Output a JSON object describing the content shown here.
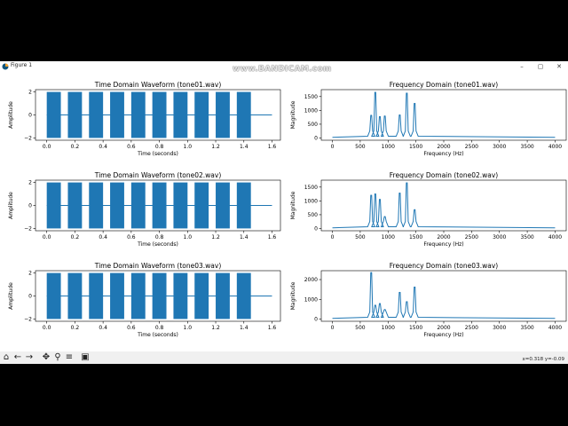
{
  "window": {
    "title": "Figure 1",
    "minimize": "–",
    "maximize": "▢",
    "close": "✕"
  },
  "watermark": "www.BANDICAM.com",
  "toolbar": {
    "buttons": [
      {
        "name": "home-icon",
        "glyph": "⌂"
      },
      {
        "name": "back-icon",
        "glyph": "←"
      },
      {
        "name": "forward-icon",
        "glyph": "→"
      },
      {
        "name": "pan-icon",
        "glyph": "✥"
      },
      {
        "name": "zoom-icon",
        "glyph": "⚲"
      },
      {
        "name": "configure-icon",
        "glyph": "≡"
      },
      {
        "name": "save-icon",
        "glyph": "▣"
      }
    ],
    "coords": "x=0.318 y=-0.09"
  },
  "colors": {
    "line": "#1f77b4",
    "axis": "#000000"
  },
  "chart_data": [
    {
      "type": "line",
      "title": "Time Domain Waveform (tone01.wav)",
      "xlabel": "Time (seconds)",
      "ylabel": "Amplitude",
      "xlim": [
        -0.08,
        1.66
      ],
      "ylim": [
        -2.2,
        2.2
      ],
      "xticks": [
        0,
        0.2,
        0.4,
        0.6,
        0.8,
        1.0,
        1.2,
        1.4,
        1.6
      ],
      "xticklabels": [
        "0.0",
        "0.2",
        "0.4",
        "0.6",
        "0.8",
        "1.0",
        "1.2",
        "1.4",
        "1.6"
      ],
      "yticks": [
        -2,
        0,
        2
      ],
      "yticklabels": [
        "−2",
        "0",
        "2"
      ],
      "bursts": [
        [
          0,
          0.1
        ],
        [
          0.15,
          0.25
        ],
        [
          0.3,
          0.4
        ],
        [
          0.45,
          0.55
        ],
        [
          0.6,
          0.7
        ],
        [
          0.75,
          0.85
        ],
        [
          0.9,
          1.0
        ],
        [
          1.05,
          1.15
        ],
        [
          1.2,
          1.3
        ],
        [
          1.35,
          1.45
        ]
      ],
      "amplitude": 2,
      "end": 1.6
    },
    {
      "type": "line",
      "title": "Frequency Domain (tone01.wav)",
      "xlabel": "Frequency (Hz)",
      "ylabel": "Magnitude",
      "xlim": [
        -200,
        4200
      ],
      "ylim": [
        -80,
        1750
      ],
      "xticks": [
        0,
        500,
        1000,
        1500,
        2000,
        2500,
        3000,
        3500,
        4000
      ],
      "xticklabels": [
        "0",
        "500",
        "1000",
        "1500",
        "2000",
        "2500",
        "3000",
        "3500",
        "4000"
      ],
      "yticks": [
        0,
        500,
        1000,
        1500
      ],
      "yticklabels": [
        "0",
        "500",
        "1000",
        "1500"
      ],
      "peaks": [
        {
          "f": 697,
          "m": 820
        },
        {
          "f": 770,
          "m": 1650
        },
        {
          "f": 852,
          "m": 770
        },
        {
          "f": 941,
          "m": 790
        },
        {
          "f": 1209,
          "m": 830
        },
        {
          "f": 1336,
          "m": 1620
        },
        {
          "f": 1477,
          "m": 1250
        }
      ],
      "fmax": 4000
    },
    {
      "type": "line",
      "title": "Time Domain Waveform (tone02.wav)",
      "xlabel": "Time (seconds)",
      "ylabel": "Amplitude",
      "xlim": [
        -0.08,
        1.66
      ],
      "ylim": [
        -2.2,
        2.2
      ],
      "xticks": [
        0,
        0.2,
        0.4,
        0.6,
        0.8,
        1.0,
        1.2,
        1.4,
        1.6
      ],
      "xticklabels": [
        "0.0",
        "0.2",
        "0.4",
        "0.6",
        "0.8",
        "1.0",
        "1.2",
        "1.4",
        "1.6"
      ],
      "yticks": [
        -2,
        0,
        2
      ],
      "yticklabels": [
        "−2",
        "0",
        "2"
      ],
      "bursts": [
        [
          0,
          0.1
        ],
        [
          0.15,
          0.25
        ],
        [
          0.3,
          0.4
        ],
        [
          0.45,
          0.55
        ],
        [
          0.6,
          0.7
        ],
        [
          0.75,
          0.85
        ],
        [
          0.9,
          1.0
        ],
        [
          1.05,
          1.15
        ],
        [
          1.2,
          1.3
        ],
        [
          1.35,
          1.45
        ]
      ],
      "amplitude": 2,
      "end": 1.6
    },
    {
      "type": "line",
      "title": "Frequency Domain (tone02.wav)",
      "xlabel": "Frequency (Hz)",
      "ylabel": "Magnitude",
      "xlim": [
        -200,
        4200
      ],
      "ylim": [
        -80,
        1750
      ],
      "xticks": [
        0,
        500,
        1000,
        1500,
        2000,
        2500,
        3000,
        3500,
        4000
      ],
      "xticklabels": [
        "0",
        "500",
        "1000",
        "1500",
        "2000",
        "2500",
        "3000",
        "3500",
        "4000"
      ],
      "yticks": [
        0,
        500,
        1000,
        1500
      ],
      "yticklabels": [
        "0",
        "500",
        "1000",
        "1500"
      ],
      "peaks": [
        {
          "f": 697,
          "m": 1200
        },
        {
          "f": 770,
          "m": 1250
        },
        {
          "f": 852,
          "m": 1050
        },
        {
          "f": 941,
          "m": 430
        },
        {
          "f": 1209,
          "m": 1280
        },
        {
          "f": 1336,
          "m": 1650
        },
        {
          "f": 1477,
          "m": 680
        }
      ],
      "fmax": 4000
    },
    {
      "type": "line",
      "title": "Time Domain Waveform (tone03.wav)",
      "xlabel": "Time (seconds)",
      "ylabel": "Amplitude",
      "xlim": [
        -0.08,
        1.66
      ],
      "ylim": [
        -2.2,
        2.2
      ],
      "xticks": [
        0,
        0.2,
        0.4,
        0.6,
        0.8,
        1.0,
        1.2,
        1.4,
        1.6
      ],
      "xticklabels": [
        "0.0",
        "0.2",
        "0.4",
        "0.6",
        "0.8",
        "1.0",
        "1.2",
        "1.4",
        "1.6"
      ],
      "yticks": [
        -2,
        0,
        2
      ],
      "yticklabels": [
        "−2",
        "0",
        "2"
      ],
      "bursts": [
        [
          0,
          0.1
        ],
        [
          0.15,
          0.25
        ],
        [
          0.3,
          0.4
        ],
        [
          0.45,
          0.55
        ],
        [
          0.6,
          0.7
        ],
        [
          0.75,
          0.85
        ],
        [
          0.9,
          1.0
        ],
        [
          1.05,
          1.15
        ],
        [
          1.2,
          1.3
        ],
        [
          1.35,
          1.45
        ]
      ],
      "amplitude": 2,
      "end": 1.6
    },
    {
      "type": "line",
      "title": "Frequency Domain (tone03.wav)",
      "xlabel": "Frequency (Hz)",
      "ylabel": "Magnitude",
      "xlim": [
        -200,
        4200
      ],
      "ylim": [
        -110,
        2450
      ],
      "xticks": [
        0,
        500,
        1000,
        1500,
        2000,
        2500,
        3000,
        3500,
        4000
      ],
      "xticklabels": [
        "0",
        "500",
        "1000",
        "1500",
        "2000",
        "2500",
        "3000",
        "3500",
        "4000"
      ],
      "yticks": [
        0,
        1000,
        2000
      ],
      "yticklabels": [
        "0",
        "1000",
        "2000"
      ],
      "peaks": [
        {
          "f": 697,
          "m": 2350
        },
        {
          "f": 770,
          "m": 700
        },
        {
          "f": 852,
          "m": 780
        },
        {
          "f": 941,
          "m": 480
        },
        {
          "f": 1209,
          "m": 1350
        },
        {
          "f": 1336,
          "m": 880
        },
        {
          "f": 1477,
          "m": 1620
        }
      ],
      "fmax": 4000
    }
  ]
}
